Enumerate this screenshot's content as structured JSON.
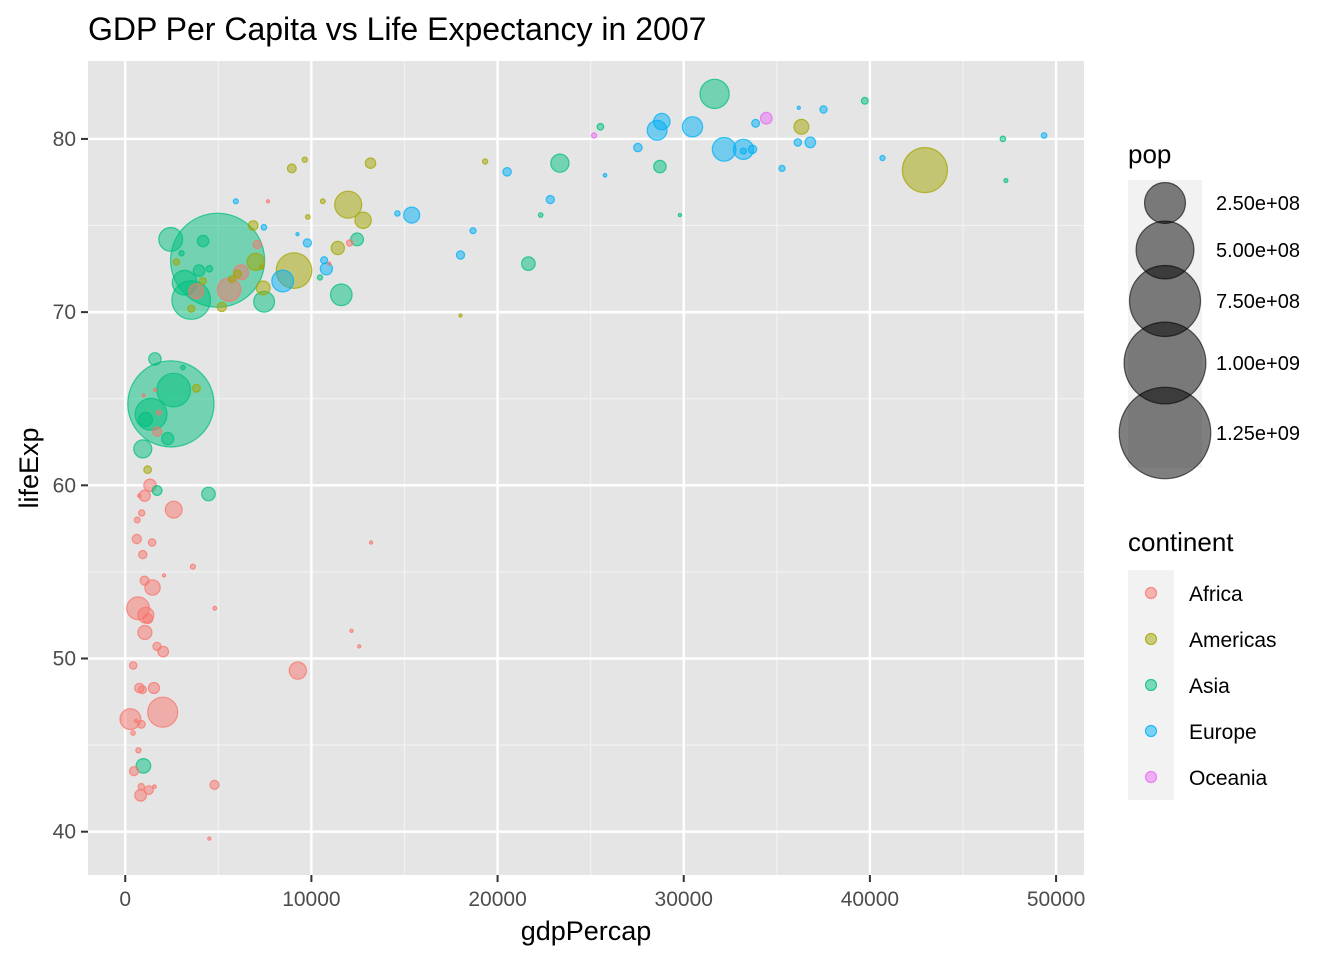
{
  "chart_data": {
    "type": "scatter",
    "title": "GDP Per Capita vs Life Expectancy in 2007",
    "xlabel": "gdpPercap",
    "ylabel": "lifeExp",
    "xlim": [
      -2000,
      51500
    ],
    "ylim": [
      37.5,
      84.5
    ],
    "x_ticks": [
      0,
      10000,
      20000,
      30000,
      40000,
      50000
    ],
    "x_tick_labels": [
      "0",
      "10000",
      "20000",
      "30000",
      "40000",
      "50000"
    ],
    "y_ticks": [
      40,
      50,
      60,
      70,
      80
    ],
    "y_tick_labels": [
      "40",
      "50",
      "60",
      "70",
      "80"
    ],
    "grid": true,
    "panel_background": "#e5e5e5",
    "point_opacity": 0.5,
    "size_legend": {
      "title": "pop",
      "values": [
        250000000,
        500000000,
        750000000,
        1000000000,
        1250000000
      ],
      "labels": [
        "2.50e+08",
        "5.00e+08",
        "7.50e+08",
        "1.00e+09",
        "1.25e+09"
      ],
      "color": "#000000"
    },
    "color_legend": {
      "title": "continent",
      "entries": [
        {
          "name": "Africa",
          "color": "#F8766D"
        },
        {
          "name": "Americas",
          "color": "#A3A500"
        },
        {
          "name": "Asia",
          "color": "#00BF7D"
        },
        {
          "name": "Europe",
          "color": "#00B0F6"
        },
        {
          "name": "Oceania",
          "color": "#E76BF3"
        }
      ]
    },
    "series": [
      {
        "name": "Africa",
        "points": [
          [
            6223,
            72.3,
            33
          ],
          [
            4797,
            42.7,
            12
          ],
          [
            1441,
            56.7,
            8
          ],
          [
            12570,
            50.7,
            1.6
          ],
          [
            1217,
            52.3,
            14
          ],
          [
            430,
            49.6,
            8
          ],
          [
            2042,
            50.4,
            17
          ],
          [
            706,
            44.7,
            4
          ],
          [
            1704,
            50.7,
            10
          ],
          [
            986,
            65.2,
            0.7
          ],
          [
            278,
            46.5,
            65
          ],
          [
            3633,
            55.3,
            3.8
          ],
          [
            1545,
            48.3,
            18
          ],
          [
            2082,
            54.8,
            0.5
          ],
          [
            5581,
            71.3,
            80
          ],
          [
            12154,
            51.6,
            0.6
          ],
          [
            641,
            58.0,
            5
          ],
          [
            691,
            52.9,
            77
          ],
          [
            13206,
            56.7,
            1.5
          ],
          [
            753,
            59.4,
            1.7
          ],
          [
            1328,
            60.0,
            23
          ],
          [
            943,
            56.0,
            9.9
          ],
          [
            579,
            46.4,
            1.5
          ],
          [
            1463,
            54.1,
            35
          ],
          [
            1569,
            42.6,
            2
          ],
          [
            415,
            45.7,
            3.2
          ],
          [
            12057,
            74.0,
            6
          ],
          [
            1045,
            59.4,
            19
          ],
          [
            759,
            48.3,
            13
          ],
          [
            1042,
            54.5,
            12
          ],
          [
            1803,
            64.2,
            3.3
          ],
          [
            10957,
            72.8,
            1.3
          ],
          [
            3820,
            71.2,
            33
          ],
          [
            824,
            42.1,
            20
          ],
          [
            4811,
            52.9,
            2.1
          ],
          [
            620,
            56.9,
            12.9
          ],
          [
            2014,
            46.9,
            135
          ],
          [
            7670,
            76.4,
            0.8
          ],
          [
            863,
            46.2,
            8.9
          ],
          [
            1598,
            65.5,
            0.2
          ],
          [
            1712,
            63.1,
            12
          ],
          [
            863,
            42.6,
            6.1
          ],
          [
            926,
            48.2,
            9.1
          ],
          [
            9270,
            49.3,
            44
          ],
          [
            2602,
            58.6,
            42
          ],
          [
            4513,
            39.6,
            1.1
          ],
          [
            1107,
            52.5,
            38
          ],
          [
            883,
            58.4,
            5.7
          ],
          [
            7093,
            73.9,
            10
          ],
          [
            1056,
            51.5,
            29
          ],
          [
            1271,
            42.4,
            11.7
          ],
          [
            470,
            43.5,
            12.3
          ]
        ]
      },
      {
        "name": "Americas",
        "points": [
          [
            12779,
            75.3,
            40
          ],
          [
            3822,
            65.6,
            9.1
          ],
          [
            9066,
            72.4,
            190
          ],
          [
            36319,
            80.7,
            33
          ],
          [
            13172,
            78.6,
            16
          ],
          [
            7007,
            72.9,
            44
          ],
          [
            9645,
            78.8,
            4.1
          ],
          [
            8948,
            78.3,
            11.4
          ],
          [
            6025,
            72.2,
            9.3
          ],
          [
            6873,
            75.0,
            13.8
          ],
          [
            5728,
            71.9,
            6.9
          ],
          [
            5186,
            70.3,
            12.6
          ],
          [
            1202,
            60.9,
            8.5
          ],
          [
            3548,
            70.2,
            7.5
          ],
          [
            7321,
            72.6,
            2.8
          ],
          [
            11978,
            76.2,
            109
          ],
          [
            2749,
            72.9,
            5.7
          ],
          [
            9809,
            75.5,
            3.2
          ],
          [
            4173,
            71.8,
            6.7
          ],
          [
            7409,
            71.4,
            28.7
          ],
          [
            19329,
            78.7,
            3.9
          ],
          [
            18009,
            69.8,
            1.1
          ],
          [
            42952,
            78.2,
            301
          ],
          [
            10611,
            76.4,
            3.4
          ],
          [
            11416,
            73.7,
            26
          ]
        ]
      },
      {
        "name": "Asia",
        "points": [
          [
            975,
            43.8,
            31.9
          ],
          [
            29796,
            75.6,
            0.7
          ],
          [
            1391,
            64.1,
            150
          ],
          [
            1714,
            59.7,
            14.1
          ],
          [
            4959,
            73.0,
            1318
          ],
          [
            39725,
            82.2,
            6.98
          ],
          [
            2452,
            64.7,
            1110
          ],
          [
            3541,
            70.7,
            223
          ],
          [
            11606,
            71.0,
            69.5
          ],
          [
            4471,
            59.5,
            27.5
          ],
          [
            25523,
            80.7,
            6.4
          ],
          [
            31656,
            82.6,
            127.5
          ],
          [
            4519,
            72.5,
            6.1
          ],
          [
            1593,
            67.3,
            23.3
          ],
          [
            23348,
            78.6,
            49
          ],
          [
            47307,
            77.6,
            2.5
          ],
          [
            10461,
            72.0,
            4.0
          ],
          [
            12452,
            74.2,
            24.8
          ],
          [
            3096,
            66.8,
            2.9
          ],
          [
            944,
            62.1,
            47.8
          ],
          [
            1091,
            63.8,
            28.9
          ],
          [
            22316,
            75.6,
            3.2
          ],
          [
            2606,
            65.5,
            169
          ],
          [
            3190,
            71.7,
            91
          ],
          [
            21655,
            72.8,
            27.6
          ],
          [
            47143,
            80.0,
            4.55
          ],
          [
            3970,
            72.4,
            20.4
          ],
          [
            4185,
            74.1,
            19.3
          ],
          [
            28718,
            78.4,
            23.2
          ],
          [
            7458,
            70.6,
            65
          ],
          [
            2442,
            74.2,
            85
          ],
          [
            3025,
            73.4,
            4
          ],
          [
            2281,
            62.7,
            22.2
          ]
        ]
      },
      {
        "name": "Europe",
        "points": [
          [
            5937,
            76.4,
            3.6
          ],
          [
            36126,
            79.8,
            8.2
          ],
          [
            33693,
            79.4,
            10.4
          ],
          [
            7446,
            74.9,
            4.6
          ],
          [
            10681,
            73.0,
            7.3
          ],
          [
            14619,
            75.7,
            4.5
          ],
          [
            22833,
            76.5,
            10.2
          ],
          [
            35278,
            78.3,
            5.5
          ],
          [
            33207,
            79.3,
            5.2
          ],
          [
            30470,
            80.7,
            61
          ],
          [
            32170,
            79.4,
            82.4
          ],
          [
            27538,
            79.5,
            10.7
          ],
          [
            18009,
            73.3,
            9.96
          ],
          [
            36181,
            81.8,
            0.3
          ],
          [
            40676,
            78.9,
            4.1
          ],
          [
            28570,
            80.5,
            58
          ],
          [
            9254,
            74.5,
            0.68
          ],
          [
            36798,
            79.8,
            16.6
          ],
          [
            49357,
            80.2,
            4.6
          ],
          [
            15390,
            75.6,
            38.5
          ],
          [
            20510,
            78.1,
            10.6
          ],
          [
            10808,
            72.5,
            22.3
          ],
          [
            9787,
            74.0,
            10.2
          ],
          [
            18678,
            74.7,
            5.4
          ],
          [
            25768,
            77.9,
            2
          ],
          [
            28821,
            81.0,
            40.4
          ],
          [
            33860,
            80.9,
            9.03
          ],
          [
            37506,
            81.7,
            7.55
          ],
          [
            8458,
            71.8,
            71.2
          ],
          [
            33203,
            79.4,
            60.8
          ]
        ]
      },
      {
        "name": "Oceania",
        "points": [
          [
            34435,
            81.2,
            20.4
          ],
          [
            25185,
            80.2,
            4.1
          ]
        ]
      }
    ]
  }
}
